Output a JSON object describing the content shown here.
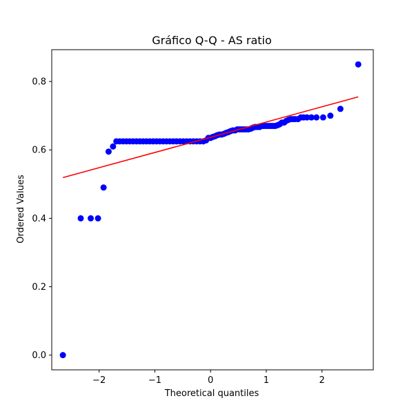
{
  "chart_data": {
    "type": "scatter",
    "title": "Gráfico Q-Q - AS ratio",
    "xlabel": "Theoretical quantiles",
    "ylabel": "Ordered Values",
    "xlim": [
      -2.85,
      2.92
    ],
    "ylim": [
      -0.043,
      0.893
    ],
    "xticks": [
      -2,
      -1,
      0,
      1,
      2
    ],
    "yticks": [
      0.0,
      0.2,
      0.4,
      0.6,
      0.8
    ],
    "xtick_labels": [
      "−2",
      "−1",
      "0",
      "1",
      "2"
    ],
    "ytick_labels": [
      "0.0",
      "0.2",
      "0.4",
      "0.6",
      "0.8"
    ],
    "grid": false,
    "marker_color": "#0000ff",
    "line_color": "#ff0000",
    "fit_line": {
      "x": [
        -2.65,
        2.65
      ],
      "y": [
        0.519,
        0.755
      ]
    },
    "points": [
      [
        -2.65,
        0.0
      ],
      [
        -2.33,
        0.4
      ],
      [
        -2.15,
        0.4
      ],
      [
        -2.02,
        0.4
      ],
      [
        -1.92,
        0.49
      ],
      [
        -1.83,
        0.595
      ],
      [
        -1.75,
        0.61
      ],
      [
        -1.69,
        0.625
      ],
      [
        -1.63,
        0.625
      ],
      [
        -1.57,
        0.625
      ],
      [
        -1.51,
        0.625
      ],
      [
        -1.45,
        0.625
      ],
      [
        -1.39,
        0.625
      ],
      [
        -1.33,
        0.625
      ],
      [
        -1.27,
        0.625
      ],
      [
        -1.21,
        0.625
      ],
      [
        -1.15,
        0.625
      ],
      [
        -1.09,
        0.625
      ],
      [
        -1.03,
        0.625
      ],
      [
        -0.97,
        0.625
      ],
      [
        -0.91,
        0.625
      ],
      [
        -0.85,
        0.625
      ],
      [
        -0.79,
        0.625
      ],
      [
        -0.73,
        0.625
      ],
      [
        -0.67,
        0.625
      ],
      [
        -0.61,
        0.625
      ],
      [
        -0.55,
        0.625
      ],
      [
        -0.49,
        0.625
      ],
      [
        -0.43,
        0.625
      ],
      [
        -0.37,
        0.625
      ],
      [
        -0.31,
        0.625
      ],
      [
        -0.25,
        0.625
      ],
      [
        -0.19,
        0.625
      ],
      [
        -0.13,
        0.625
      ],
      [
        -0.08,
        0.628
      ],
      [
        -0.04,
        0.635
      ],
      [
        0.0,
        0.635
      ],
      [
        0.04,
        0.638
      ],
      [
        0.08,
        0.64
      ],
      [
        0.12,
        0.643
      ],
      [
        0.16,
        0.645
      ],
      [
        0.2,
        0.645
      ],
      [
        0.24,
        0.647
      ],
      [
        0.28,
        0.65
      ],
      [
        0.32,
        0.652
      ],
      [
        0.36,
        0.655
      ],
      [
        0.4,
        0.657
      ],
      [
        0.44,
        0.657
      ],
      [
        0.48,
        0.66
      ],
      [
        0.52,
        0.66
      ],
      [
        0.56,
        0.66
      ],
      [
        0.6,
        0.66
      ],
      [
        0.64,
        0.66
      ],
      [
        0.68,
        0.66
      ],
      [
        0.72,
        0.662
      ],
      [
        0.76,
        0.665
      ],
      [
        0.8,
        0.667
      ],
      [
        0.84,
        0.667
      ],
      [
        0.88,
        0.667
      ],
      [
        0.92,
        0.67
      ],
      [
        0.96,
        0.67
      ],
      [
        1.0,
        0.67
      ],
      [
        1.04,
        0.67
      ],
      [
        1.08,
        0.67
      ],
      [
        1.12,
        0.67
      ],
      [
        1.16,
        0.67
      ],
      [
        1.2,
        0.672
      ],
      [
        1.24,
        0.675
      ],
      [
        1.28,
        0.68
      ],
      [
        1.32,
        0.68
      ],
      [
        1.36,
        0.685
      ],
      [
        1.4,
        0.688
      ],
      [
        1.44,
        0.69
      ],
      [
        1.48,
        0.69
      ],
      [
        1.52,
        0.69
      ],
      [
        1.57,
        0.69
      ],
      [
        1.62,
        0.695
      ],
      [
        1.67,
        0.695
      ],
      [
        1.73,
        0.695
      ],
      [
        1.81,
        0.695
      ],
      [
        1.9,
        0.695
      ],
      [
        2.02,
        0.695
      ],
      [
        2.15,
        0.7
      ],
      [
        2.33,
        0.72
      ],
      [
        2.65,
        0.85
      ]
    ]
  }
}
